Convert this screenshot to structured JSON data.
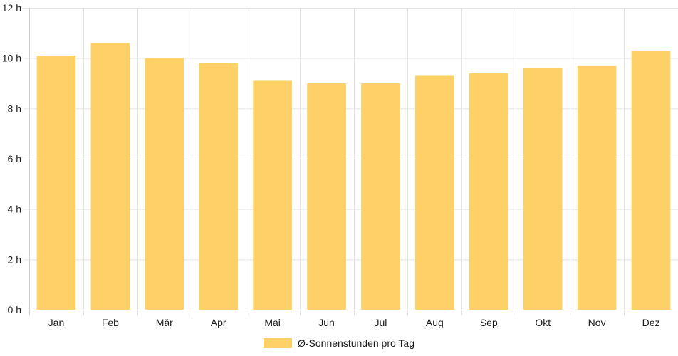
{
  "chart_data": {
    "type": "bar",
    "categories": [
      "Jan",
      "Feb",
      "Mär",
      "Apr",
      "Mai",
      "Jun",
      "Jul",
      "Aug",
      "Sep",
      "Okt",
      "Nov",
      "Dez"
    ],
    "series": [
      {
        "name": "Ø-Sonnenstunden pro Tag",
        "values": [
          10.1,
          10.6,
          10.0,
          9.8,
          9.1,
          9.0,
          9.0,
          9.3,
          9.4,
          9.6,
          9.7,
          10.3
        ],
        "color": "#fdd167"
      }
    ],
    "y_ticks": [
      "0 h",
      "2 h",
      "4 h",
      "6 h",
      "8 h",
      "10 h",
      "12 h"
    ],
    "ylim": [
      0,
      12
    ],
    "grid": true,
    "legend_position": "bottom"
  }
}
